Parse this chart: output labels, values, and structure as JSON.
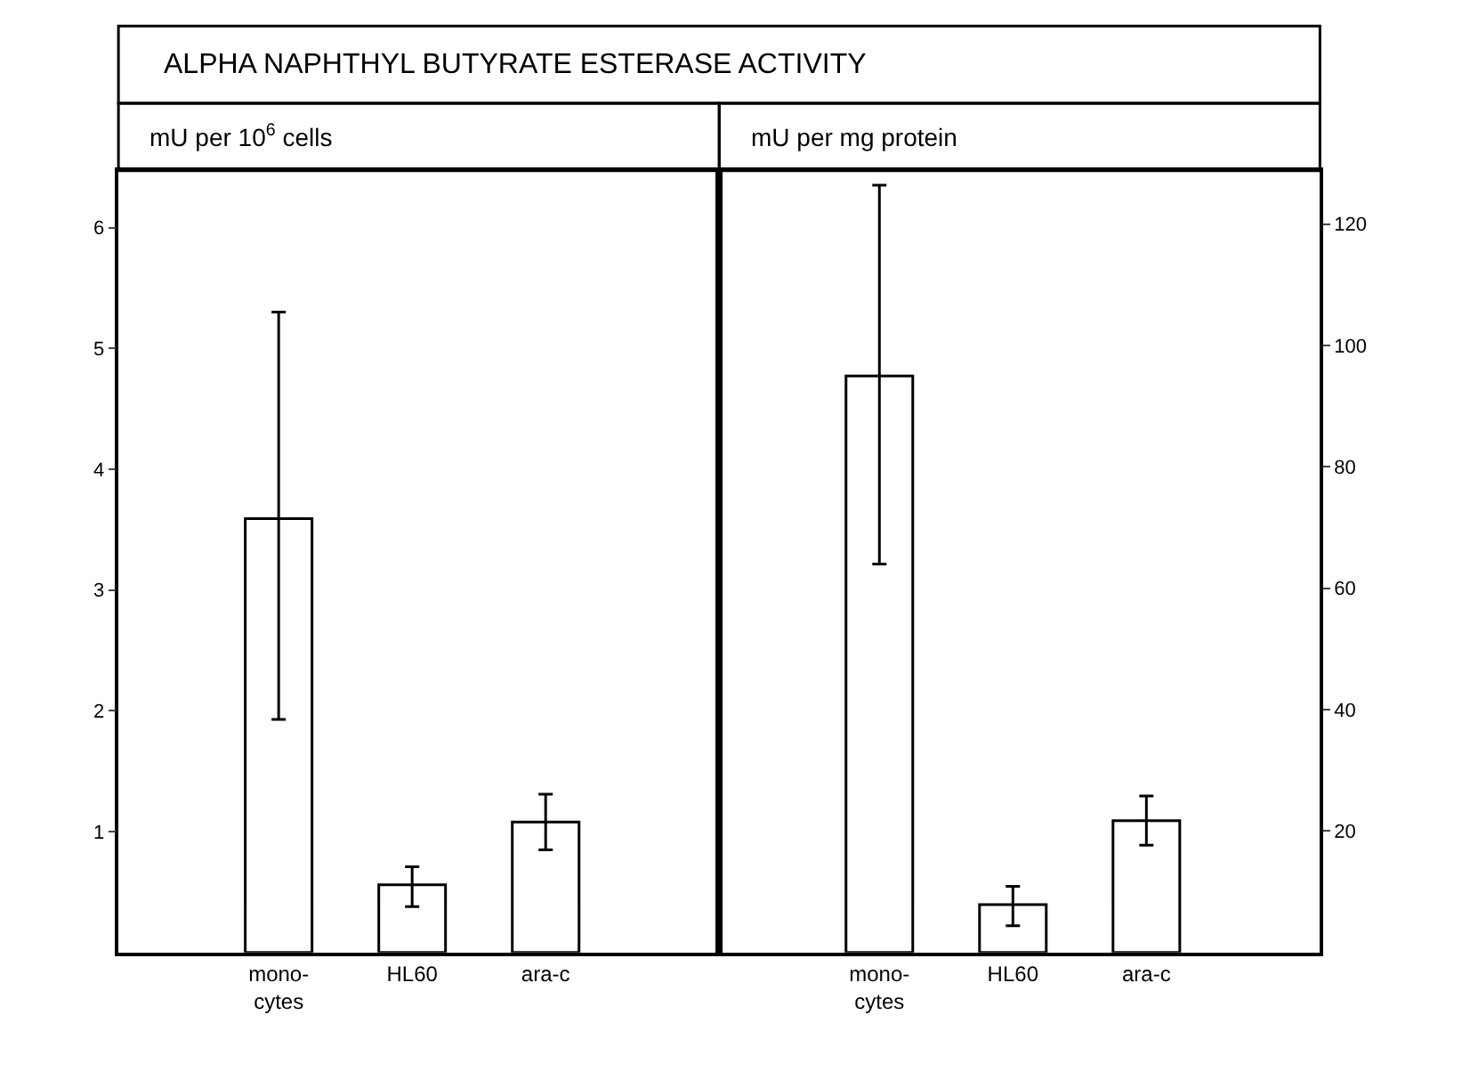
{
  "chart_data": [
    {
      "type": "bar",
      "title": "ALPHA NAPHTHYL BUTYRATE ESTERASE ACTIVITY",
      "subtitle": "mU per 10$^{6}$ cells",
      "categories": [
        "mono-\ncytes",
        "HL60",
        "ara-c"
      ],
      "values": [
        3.59,
        0.56,
        1.08
      ],
      "color": "#ffffff",
      "errors": [
        [
          1.93,
          5.3
        ],
        [
          0.38,
          0.71
        ],
        [
          0.85,
          1.31
        ]
      ],
      "ylim": [
        0,
        6.47
      ],
      "yticks": [
        1,
        2,
        3,
        4,
        5,
        6
      ]
    },
    {
      "type": "bar",
      "subtitle": "mU per mg protein",
      "categories": [
        "mono-\ncytes",
        "HL60",
        "ara-c"
      ],
      "values": [
        95,
        7.9,
        21.7
      ],
      "color": "#ffffff",
      "errors": [
        [
          64,
          126.4
        ],
        [
          4.4,
          10.9
        ],
        [
          17.7,
          25.8
        ]
      ],
      "ylim": [
        0,
        128.8
      ],
      "yticks": [
        20,
        40,
        60,
        80,
        100,
        120
      ]
    }
  ]
}
